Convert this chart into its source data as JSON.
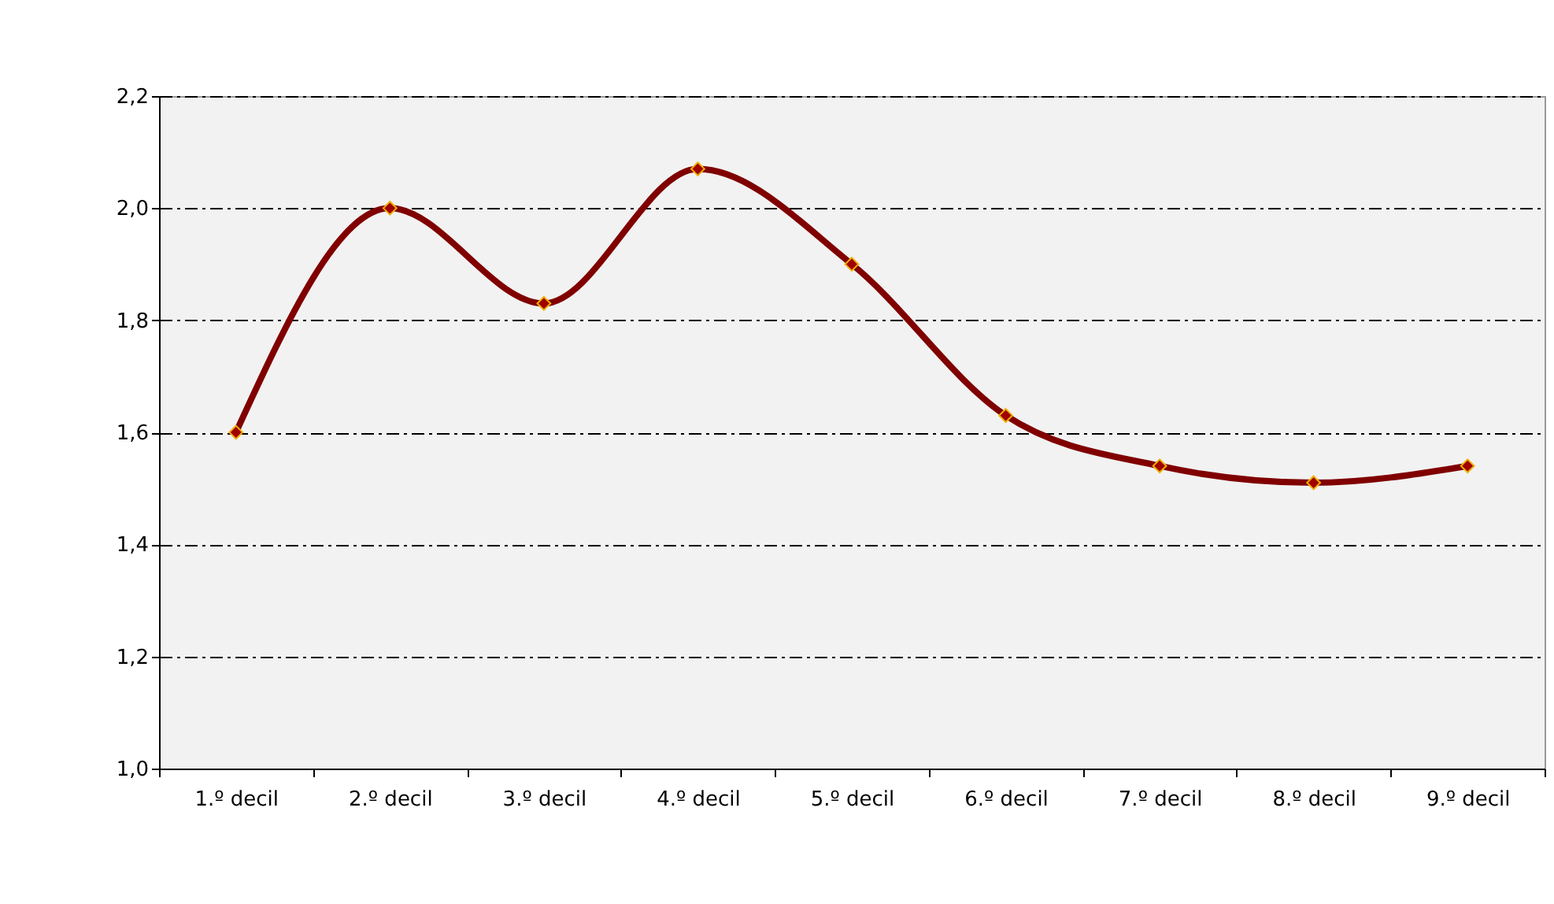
{
  "chart_data": {
    "type": "line",
    "categories": [
      "1.º decil",
      "2.º decil",
      "3.º decil",
      "4.º decil",
      "5.º decil",
      "6.º decil",
      "7.º decil",
      "8.º decil",
      "9.º decil"
    ],
    "series": [
      {
        "color": "#800000",
        "values": [
          1.6,
          2.0,
          1.83,
          2.07,
          1.9,
          1.63,
          1.54,
          1.51,
          1.54
        ]
      }
    ],
    "ylim": [
      1.0,
      2.2
    ],
    "yticks": [
      {
        "value": 1.0,
        "label": "1,0"
      },
      {
        "value": 1.2,
        "label": "1,2"
      },
      {
        "value": 1.4,
        "label": "1,4"
      },
      {
        "value": 1.6,
        "label": "1,6"
      },
      {
        "value": 1.8,
        "label": "1,8"
      },
      {
        "value": 2.0,
        "label": "2,0"
      },
      {
        "value": 2.2,
        "label": "2,2"
      }
    ],
    "grid": "y",
    "marker": "diamond",
    "line_style": "solid"
  }
}
